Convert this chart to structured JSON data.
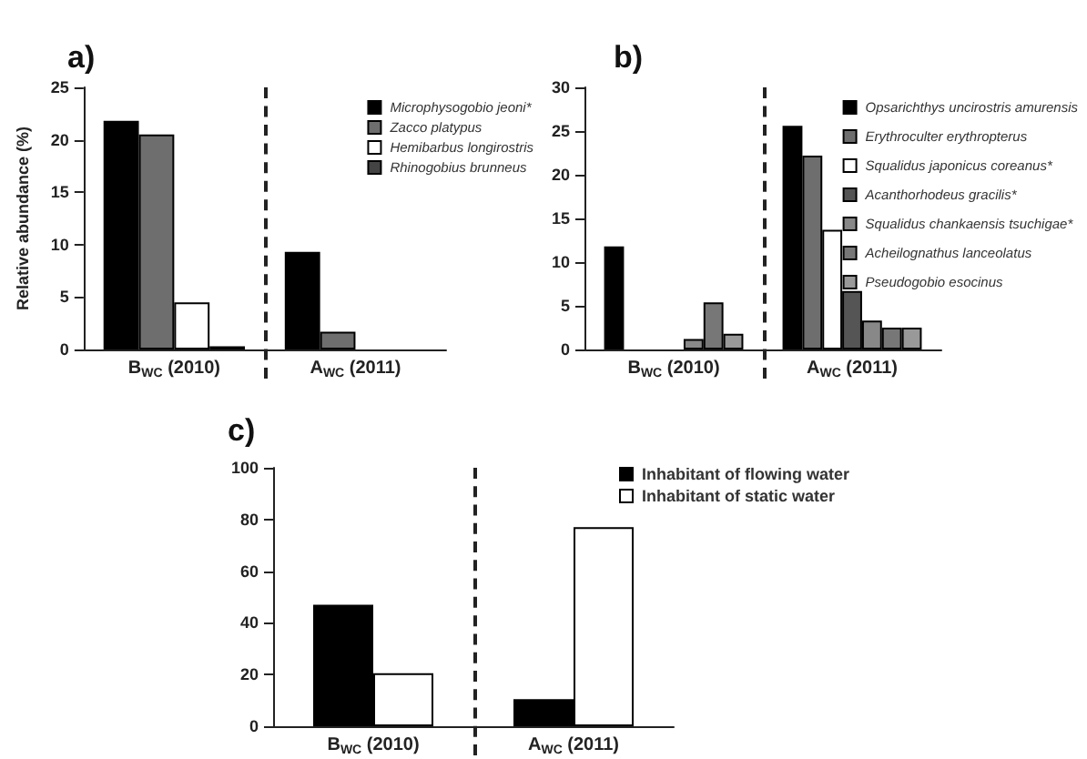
{
  "chart_data": [
    {
      "type": "bar",
      "title": "a)",
      "ylabel": "Relative abundance (%)",
      "categories": [
        "B$_{WC}$ (2010)",
        "A$_{WC}$ (2011)"
      ],
      "series": [
        {
          "name": "Microphysogobio jeoni*",
          "color": "#000000",
          "values": [
            21.8,
            9.3
          ]
        },
        {
          "name": "Zacco platypus",
          "color": "#6e6e6e",
          "values": [
            20.5,
            1.7
          ]
        },
        {
          "name": "Hemibarbus longirostris",
          "color": "#ffffff",
          "values": [
            4.5,
            0
          ]
        },
        {
          "name": "Rhinogobius brunneus",
          "color": "#444444",
          "values": [
            0.3,
            0
          ]
        }
      ],
      "ylim": [
        0,
        25
      ],
      "yticks": [
        0,
        5,
        10,
        15,
        20,
        25
      ],
      "grid": false,
      "legend": "top right"
    },
    {
      "type": "bar",
      "title": "b)",
      "categories": [
        "B$_{WC}$ (2010)",
        "A$_{WC}$ (2011)"
      ],
      "series": [
        {
          "name": "Opsarichthys uncirostris amurensis",
          "color": "#000000",
          "values": [
            11.8,
            25.6
          ]
        },
        {
          "name": "Erythroculter erythropterus",
          "color": "#6e6e6e",
          "values": [
            0,
            22.2
          ]
        },
        {
          "name": "Squalidus japonicus coreanus*",
          "color": "#ffffff",
          "values": [
            0,
            13.7
          ]
        },
        {
          "name": "Acanthorhodeus gracilis*",
          "color": "#555555",
          "values": [
            0,
            6.7
          ]
        },
        {
          "name": "Squalidus chankaensis tsuchigae*",
          "color": "#888888",
          "values": [
            1.2,
            3.3
          ]
        },
        {
          "name": "Acheilognathus lanceolatus",
          "color": "#777777",
          "values": [
            5.4,
            2.5
          ]
        },
        {
          "name": "Pseudogobio esocinus",
          "color": "#999999",
          "values": [
            1.8,
            2.5
          ]
        }
      ],
      "ylim": [
        0,
        30
      ],
      "yticks": [
        0,
        5,
        10,
        15,
        20,
        25,
        30
      ],
      "grid": false,
      "legend": "top right"
    },
    {
      "type": "bar",
      "title": "c)",
      "categories": [
        "B$_{WC}$ (2010)",
        "A$_{WC}$ (2011)"
      ],
      "series": [
        {
          "name": "Inhabitant of flowing water",
          "color": "#000000",
          "values": [
            47,
            10.5
          ]
        },
        {
          "name": "Inhabitant of static water",
          "color": "#ffffff",
          "values": [
            20.5,
            77
          ]
        }
      ],
      "ylim": [
        0,
        100
      ],
      "yticks": [
        0,
        20,
        40,
        60,
        80,
        100
      ],
      "grid": false,
      "legend": "top right"
    }
  ]
}
